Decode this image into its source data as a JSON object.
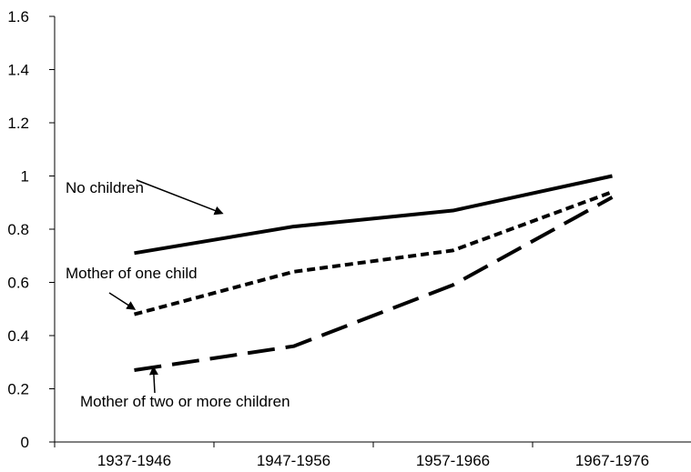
{
  "chart_data": {
    "type": "line",
    "title": "",
    "xlabel": "",
    "ylabel": "",
    "categories": [
      "1937-1946",
      "1947-1956",
      "1957-1966",
      "1967-1976"
    ],
    "ylim": [
      0,
      1.6
    ],
    "yticks": [
      0,
      0.2,
      0.4,
      0.6,
      0.8,
      1,
      1.2,
      1.4,
      1.6
    ],
    "ytick_labels": [
      "0",
      "0.2",
      "0.4",
      "0.6",
      "0.8",
      "1",
      "1.2",
      "1.4",
      "1.6"
    ],
    "grid": false,
    "legend": "none",
    "series": [
      {
        "name": "No children",
        "values": [
          0.71,
          0.81,
          0.87,
          1.0
        ],
        "line_style": "solid",
        "color": "#000000"
      },
      {
        "name": "Mother of one child",
        "values": [
          0.48,
          0.64,
          0.72,
          0.94
        ],
        "line_style": "short-dash",
        "color": "#000000"
      },
      {
        "name": "Mother of two or more children",
        "values": [
          0.27,
          0.36,
          0.59,
          0.92
        ],
        "line_style": "long-dash",
        "color": "#000000"
      }
    ],
    "annotations": [
      {
        "text": "No children",
        "series": 0,
        "points_to_category": 0.55,
        "points_to_value": 0.86
      },
      {
        "text": "Mother of one child",
        "series": 1,
        "points_to_category": 0.0,
        "points_to_value": 0.5
      },
      {
        "text": "Mother of two or more children",
        "series": 2,
        "points_to_category": 0.12,
        "points_to_value": 0.28
      }
    ]
  }
}
